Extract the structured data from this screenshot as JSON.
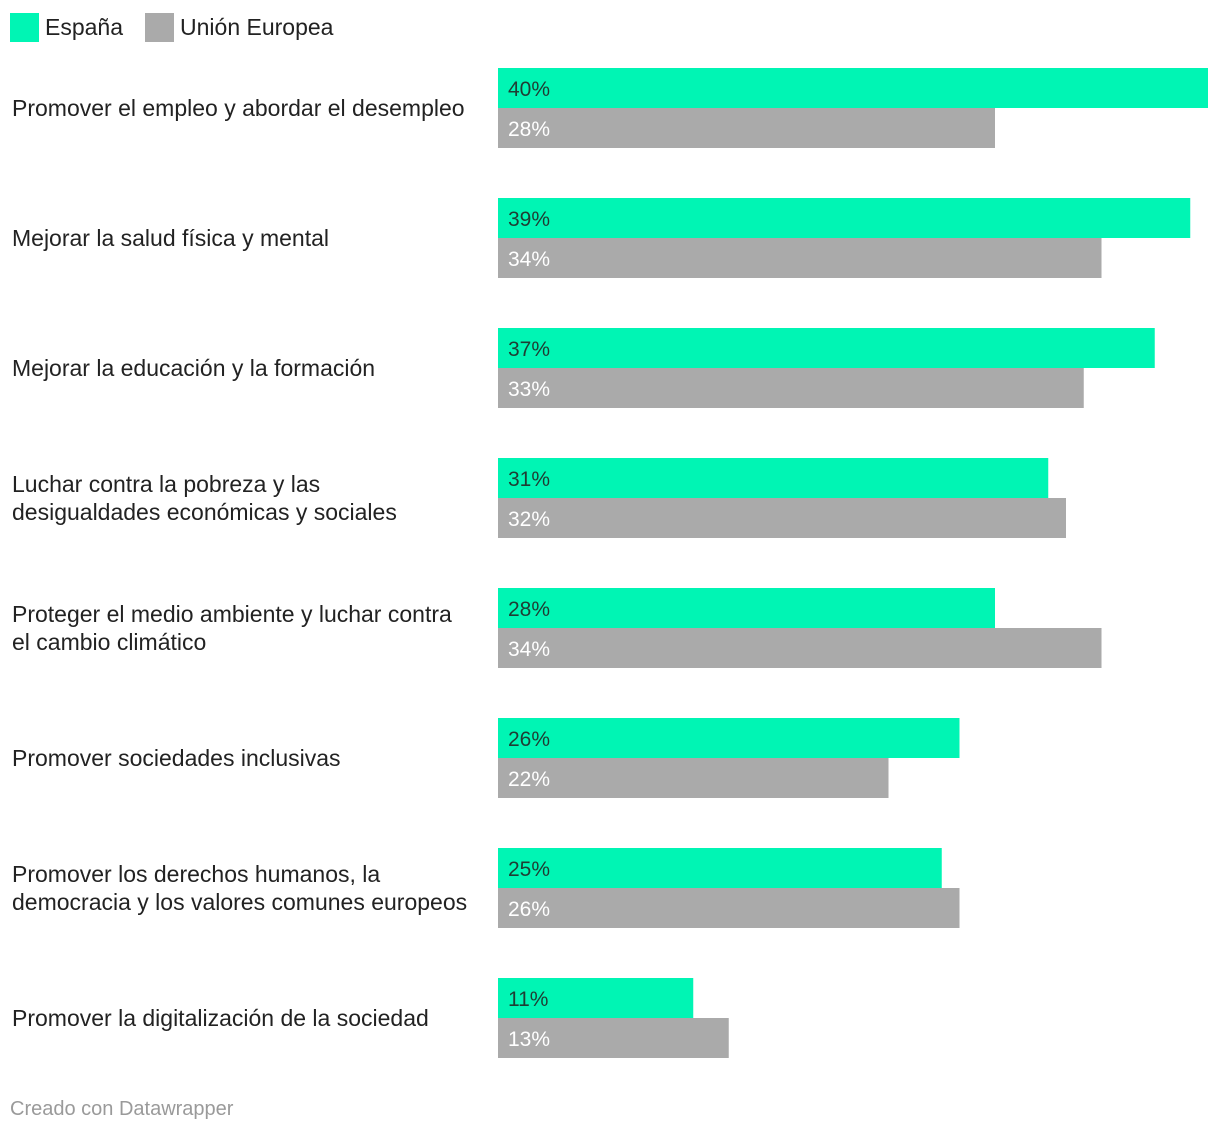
{
  "legend": [
    {
      "label": "España",
      "color": "#00f5b4"
    },
    {
      "label": "Unión Europea",
      "color": "#aaaaaa"
    }
  ],
  "chart_data": {
    "type": "bar",
    "orientation": "horizontal",
    "categories": [
      [
        "Promover el empleo y abordar el desempleo"
      ],
      [
        "Mejorar la salud física y mental"
      ],
      [
        "Mejorar la educación y la formación"
      ],
      [
        "Luchar contra la pobreza y las",
        "desigualdades económicas y sociales"
      ],
      [
        "Proteger el medio ambiente y luchar contra",
        "el cambio climático"
      ],
      [
        "Promover sociedades inclusivas"
      ],
      [
        "Promover los derechos humanos, la",
        "democracia y los valores comunes europeos"
      ],
      [
        "Promover la digitalización de la sociedad"
      ]
    ],
    "series": [
      {
        "name": "España",
        "color": "#00f5b4",
        "label_color": "#1f3d33",
        "values": [
          40,
          39,
          37,
          31,
          28,
          26,
          25,
          11
        ]
      },
      {
        "name": "Unión Europea",
        "color": "#aaaaaa",
        "label_color": "#ffffff",
        "values": [
          28,
          34,
          33,
          32,
          34,
          22,
          26,
          13
        ]
      }
    ],
    "value_suffix": "%",
    "xlim": [
      0,
      40
    ]
  },
  "footer": "Creado con Datawrapper"
}
